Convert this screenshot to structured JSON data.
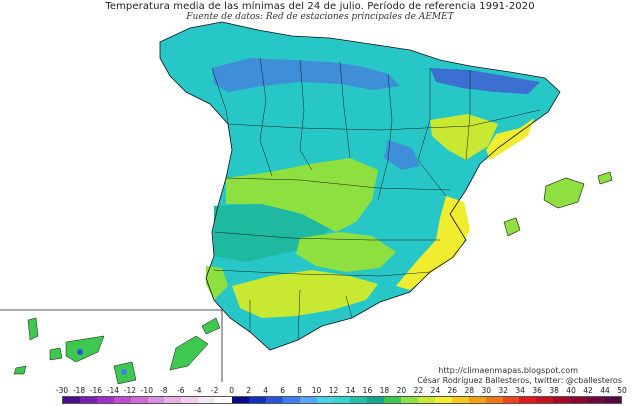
{
  "title": "Temperatura media de las mínimas del 24 de julio. Período de referencia 1991-2020",
  "subtitle": "Fuente de datos: Red de estaciones principales de AEMET",
  "credit": {
    "url": "http://climaenmapas.blogspot.com",
    "author": "César Rodríguez Ballesteros, twitter: @cballesteros"
  },
  "legend": {
    "labels": [
      "-30",
      "-18",
      "-16",
      "-14",
      "-12",
      "-10",
      "-8",
      "-6",
      "-4",
      "-2",
      "0",
      "2",
      "4",
      "6",
      "8",
      "10",
      "12",
      "14",
      "16",
      "18",
      "20",
      "22",
      "24",
      "26",
      "28",
      "30",
      "32",
      "34",
      "36",
      "38",
      "40",
      "42",
      "44",
      "50"
    ],
    "colors": [
      "#4b0f8a",
      "#7a1fb0",
      "#a02fc4",
      "#c04bd0",
      "#d06ad8",
      "#dc8ee0",
      "#e6b0e6",
      "#eed0ee",
      "#f5e6f5",
      "#ffffff",
      "#0a0a8a",
      "#1530b8",
      "#2a55d8",
      "#3f7ef0",
      "#55a8f5",
      "#4ccfe8",
      "#2fd7d0",
      "#1fbfa8",
      "#0fa888",
      "#3fc850",
      "#8ee040",
      "#c8e832",
      "#f0ec30",
      "#f5c820",
      "#f5a010",
      "#f07818",
      "#ee4418",
      "#e01818",
      "#c81020",
      "#a80828",
      "#8a0830",
      "#700a38",
      "#580a40"
    ]
  },
  "map": {
    "regions": [
      {
        "name": "iberia-base",
        "fill": "#27c7c8"
      },
      {
        "name": "northern-mountains",
        "fill": "#3f8ed8"
      },
      {
        "name": "pyrenees",
        "fill": "#3b70d0"
      },
      {
        "name": "southern-meseta",
        "fill": "#8ee040"
      },
      {
        "name": "guadiana-valley",
        "fill": "#1fb8a0"
      },
      {
        "name": "ebro-valley",
        "fill": "#c8e832"
      },
      {
        "name": "guadalquivir-valley",
        "fill": "#c8e832"
      },
      {
        "name": "mediterranean-coast",
        "fill": "#f0ec30"
      },
      {
        "name": "balearic-islands",
        "fill": "#8ee040"
      },
      {
        "name": "canary-islands",
        "fill": "#3fc850"
      }
    ]
  }
}
